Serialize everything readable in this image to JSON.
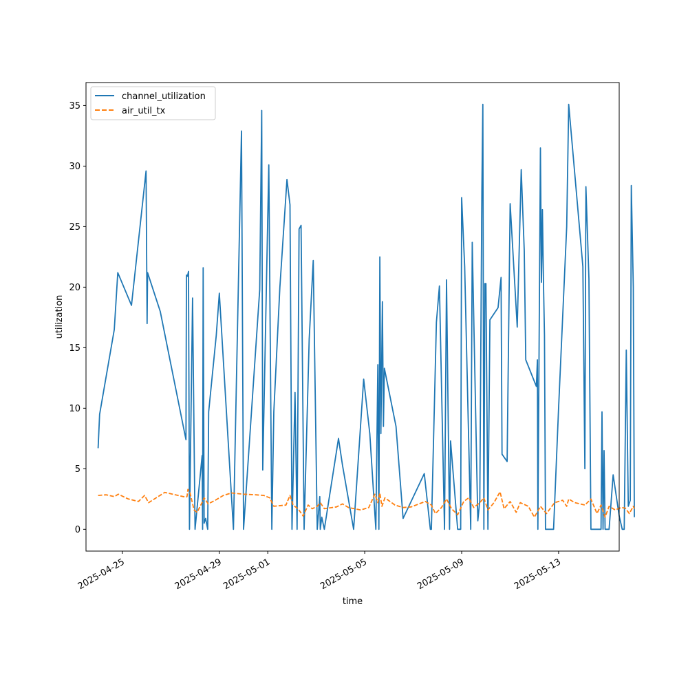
{
  "chart_data": {
    "type": "line",
    "title": "",
    "xlabel": "time",
    "ylabel": "utilization",
    "xlim": [
      "2025-04-23T12:00",
      "2025-05-15T12:00"
    ],
    "ylim": [
      -1.8,
      36.9
    ],
    "y_ticks": [
      0,
      5,
      10,
      15,
      20,
      25,
      30,
      35
    ],
    "x_ticks": [
      "2025-04-25",
      "2025-04-29",
      "2025-05-01",
      "2025-05-05",
      "2025-05-09",
      "2025-05-13"
    ],
    "grid": false,
    "legend_position": "top-left",
    "colors": {
      "channel_utilization": "#1f77b4",
      "air_util_tx": "#ff7f0e"
    },
    "series": [
      {
        "name": "channel_utilization",
        "style": "solid",
        "points": [
          [
            "2025-04-24T00:00",
            6.7
          ],
          [
            "2025-04-24T01:30",
            9.5
          ],
          [
            "2025-04-24T16:00",
            16.5
          ],
          [
            "2025-04-24T19:30",
            21.2
          ],
          [
            "2025-04-25T09:00",
            18.5
          ],
          [
            "2025-04-25T23:30",
            29.6
          ],
          [
            "2025-04-26T00:30",
            17.0
          ],
          [
            "2025-04-26T01:00",
            21.2
          ],
          [
            "2025-04-26T13:30",
            18.0
          ],
          [
            "2025-04-27T15:00",
            7.4
          ],
          [
            "2025-04-27T15:30",
            21.0
          ],
          [
            "2025-04-27T16:30",
            20.9
          ],
          [
            "2025-04-27T17:30",
            21.3
          ],
          [
            "2025-04-27T18:30",
            0.0
          ],
          [
            "2025-04-27T21:30",
            19.1
          ],
          [
            "2025-04-28T00:00",
            0.0
          ],
          [
            "2025-04-28T07:00",
            6.1
          ],
          [
            "2025-04-28T07:30",
            0.0
          ],
          [
            "2025-04-28T08:00",
            21.6
          ],
          [
            "2025-04-28T09:00",
            0.5
          ],
          [
            "2025-04-28T10:30",
            0.9
          ],
          [
            "2025-04-28T12:30",
            0.0
          ],
          [
            "2025-04-28T13:30",
            9.7
          ],
          [
            "2025-04-28T21:00",
            16.0
          ],
          [
            "2025-04-29T00:00",
            19.5
          ],
          [
            "2025-04-29T14:00",
            0.0
          ],
          [
            "2025-04-29T22:00",
            32.9
          ],
          [
            "2025-04-30T00:00",
            0.0
          ],
          [
            "2025-04-30T16:00",
            19.8
          ],
          [
            "2025-04-30T18:00",
            34.6
          ],
          [
            "2025-04-30T19:00",
            4.9
          ],
          [
            "2025-05-01T01:00",
            30.1
          ],
          [
            "2025-05-01T04:00",
            0.0
          ],
          [
            "2025-05-01T06:00",
            9.7
          ],
          [
            "2025-05-01T12:00",
            20.0
          ],
          [
            "2025-05-01T19:00",
            28.9
          ],
          [
            "2025-05-01T22:00",
            26.8
          ],
          [
            "2025-05-02T00:00",
            0.0
          ],
          [
            "2025-05-02T03:00",
            11.3
          ],
          [
            "2025-05-02T05:00",
            0.0
          ],
          [
            "2025-05-02T07:00",
            24.8
          ],
          [
            "2025-05-02T09:00",
            25.1
          ],
          [
            "2025-05-02T12:00",
            0.0
          ],
          [
            "2025-05-02T17:00",
            15.7
          ],
          [
            "2025-05-02T21:00",
            22.2
          ],
          [
            "2025-05-03T01:00",
            0.0
          ],
          [
            "2025-05-03T03:30",
            2.7
          ],
          [
            "2025-05-03T04:00",
            0.0
          ],
          [
            "2025-05-03T05:30",
            1.0
          ],
          [
            "2025-05-03T08:00",
            0.0
          ],
          [
            "2025-05-03T22:00",
            7.5
          ],
          [
            "2025-05-04T02:00",
            5.3
          ],
          [
            "2025-05-04T13:00",
            0.0
          ],
          [
            "2025-05-04T23:00",
            12.4
          ],
          [
            "2025-05-05T05:00",
            7.9
          ],
          [
            "2025-05-05T11:00",
            0.0
          ],
          [
            "2025-05-05T13:00",
            13.6
          ],
          [
            "2025-05-05T14:00",
            0.0
          ],
          [
            "2025-05-05T15:00",
            22.5
          ],
          [
            "2025-05-05T16:00",
            7.9
          ],
          [
            "2025-05-05T17:30",
            18.8
          ],
          [
            "2025-05-05T18:30",
            8.5
          ],
          [
            "2025-05-05T19:30",
            13.3
          ],
          [
            "2025-05-06T07:00",
            8.5
          ],
          [
            "2025-05-06T14:00",
            0.9
          ],
          [
            "2025-05-07T11:00",
            4.6
          ],
          [
            "2025-05-07T17:00",
            0.0
          ],
          [
            "2025-05-07T18:00",
            0.0
          ],
          [
            "2025-05-07T23:00",
            17.1
          ],
          [
            "2025-05-08T02:00",
            20.1
          ],
          [
            "2025-05-08T07:00",
            0.0
          ],
          [
            "2025-05-08T09:00",
            20.6
          ],
          [
            "2025-05-08T12:00",
            0.0
          ],
          [
            "2025-05-08T13:00",
            7.3
          ],
          [
            "2025-05-08T20:00",
            0.0
          ],
          [
            "2025-05-08T23:00",
            0.0
          ],
          [
            "2025-05-09T00:00",
            27.4
          ],
          [
            "2025-05-09T03:00",
            21.7
          ],
          [
            "2025-05-09T09:00",
            0.0
          ],
          [
            "2025-05-09T10:30",
            23.7
          ],
          [
            "2025-05-09T16:00",
            0.7
          ],
          [
            "2025-05-09T18:00",
            2.4
          ],
          [
            "2025-05-09T20:00",
            28.0
          ],
          [
            "2025-05-09T21:00",
            35.1
          ],
          [
            "2025-05-09T22:00",
            0.0
          ],
          [
            "2025-05-09T23:00",
            20.3
          ],
          [
            "2025-05-10T00:00",
            20.3
          ],
          [
            "2025-05-10T02:00",
            0.0
          ],
          [
            "2025-05-10T04:00",
            17.3
          ],
          [
            "2025-05-10T12:00",
            18.3
          ],
          [
            "2025-05-10T15:00",
            20.8
          ],
          [
            "2025-05-10T16:00",
            6.2
          ],
          [
            "2025-05-10T21:00",
            5.6
          ],
          [
            "2025-05-11T00:00",
            26.9
          ],
          [
            "2025-05-11T07:00",
            16.7
          ],
          [
            "2025-05-11T11:00",
            29.7
          ],
          [
            "2025-05-11T14:00",
            23.0
          ],
          [
            "2025-05-11T15:30",
            14.0
          ],
          [
            "2025-05-12T02:00",
            11.8
          ],
          [
            "2025-05-12T03:00",
            14.0
          ],
          [
            "2025-05-12T03:30",
            0.0
          ],
          [
            "2025-05-12T06:00",
            31.5
          ],
          [
            "2025-05-12T07:00",
            20.4
          ],
          [
            "2025-05-12T08:00",
            26.4
          ],
          [
            "2025-05-12T09:00",
            20.5
          ],
          [
            "2025-05-12T10:00",
            16.0
          ],
          [
            "2025-05-12T11:00",
            0.0
          ],
          [
            "2025-05-12T19:00",
            0.0
          ],
          [
            "2025-05-13T00:00",
            10.0
          ],
          [
            "2025-05-13T08:00",
            25.0
          ],
          [
            "2025-05-13T10:00",
            35.1
          ],
          [
            "2025-05-14T00:00",
            21.7
          ],
          [
            "2025-05-14T02:00",
            5.0
          ],
          [
            "2025-05-14T03:00",
            28.3
          ],
          [
            "2025-05-14T06:00",
            20.7
          ],
          [
            "2025-05-14T08:00",
            0.0
          ],
          [
            "2025-05-14T18:00",
            0.0
          ],
          [
            "2025-05-14T19:00",
            9.7
          ],
          [
            "2025-05-14T20:00",
            0.0
          ],
          [
            "2025-05-14T21:00",
            6.5
          ],
          [
            "2025-05-14T22:00",
            0.0
          ],
          [
            "2025-05-15T02:00",
            0.0
          ],
          [
            "2025-05-15T06:00",
            4.5
          ],
          [
            "2025-05-15T12:00",
            1.1
          ],
          [
            "2025-05-15T15:00",
            0.0
          ],
          [
            "2025-05-15T17:00",
            0.0
          ],
          [
            "2025-05-15T19:00",
            14.8
          ],
          [
            "2025-05-15T21:00",
            1.9
          ],
          [
            "2025-05-15T23:00",
            2.4
          ],
          [
            "2025-05-16T00:00",
            28.4
          ],
          [
            "2025-05-16T02:00",
            20.0
          ],
          [
            "2025-05-16T03:00",
            1.0
          ]
        ]
      },
      {
        "name": "air_util_tx",
        "style": "dashed",
        "points": [
          [
            "2025-04-24T00:00",
            2.8
          ],
          [
            "2025-04-24T08:00",
            2.85
          ],
          [
            "2025-04-24T16:00",
            2.7
          ],
          [
            "2025-04-24T20:00",
            2.9
          ],
          [
            "2025-04-25T06:00",
            2.5
          ],
          [
            "2025-04-25T16:00",
            2.3
          ],
          [
            "2025-04-25T22:00",
            2.8
          ],
          [
            "2025-04-26T02:00",
            2.2
          ],
          [
            "2025-04-26T18:00",
            3.05
          ],
          [
            "2025-04-27T15:00",
            2.65
          ],
          [
            "2025-04-27T16:00",
            2.7
          ],
          [
            "2025-04-27T17:00",
            3.3
          ],
          [
            "2025-04-27T19:00",
            3.0
          ],
          [
            "2025-04-27T23:00",
            1.6
          ],
          [
            "2025-04-28T02:00",
            1.4
          ],
          [
            "2025-04-28T05:00",
            1.9
          ],
          [
            "2025-04-28T07:30",
            2.3
          ],
          [
            "2025-04-28T09:00",
            2.6
          ],
          [
            "2025-04-28T13:00",
            2.1
          ],
          [
            "2025-04-28T20:00",
            2.4
          ],
          [
            "2025-04-29T04:00",
            2.8
          ],
          [
            "2025-04-29T12:00",
            3.0
          ],
          [
            "2025-04-30T00:00",
            2.9
          ],
          [
            "2025-04-30T12:00",
            2.85
          ],
          [
            "2025-04-30T20:00",
            2.8
          ],
          [
            "2025-05-01T02:00",
            2.6
          ],
          [
            "2025-05-01T06:00",
            1.9
          ],
          [
            "2025-05-01T18:00",
            2.0
          ],
          [
            "2025-05-01T22:00",
            2.8
          ],
          [
            "2025-05-02T01:00",
            2.0
          ],
          [
            "2025-05-02T06:00",
            1.7
          ],
          [
            "2025-05-02T11:00",
            1.1
          ],
          [
            "2025-05-02T16:00",
            2.0
          ],
          [
            "2025-05-02T20:00",
            1.7
          ],
          [
            "2025-05-03T01:00",
            1.9
          ],
          [
            "2025-05-03T04:00",
            2.2
          ],
          [
            "2025-05-03T08:00",
            1.7
          ],
          [
            "2025-05-03T20:00",
            1.85
          ],
          [
            "2025-05-04T02:00",
            2.1
          ],
          [
            "2025-05-04T08:00",
            1.8
          ],
          [
            "2025-05-04T20:00",
            1.6
          ],
          [
            "2025-05-05T04:00",
            1.8
          ],
          [
            "2025-05-05T10:00",
            2.9
          ],
          [
            "2025-05-05T13:00",
            2.2
          ],
          [
            "2025-05-05T15:00",
            3.0
          ],
          [
            "2025-05-05T17:00",
            1.9
          ],
          [
            "2025-05-05T20:00",
            2.6
          ],
          [
            "2025-05-06T06:00",
            2.0
          ],
          [
            "2025-05-06T14:00",
            1.8
          ],
          [
            "2025-05-06T22:00",
            1.85
          ],
          [
            "2025-05-07T12:00",
            2.3
          ],
          [
            "2025-05-07T18:00",
            2.0
          ],
          [
            "2025-05-07T22:00",
            1.3
          ],
          [
            "2025-05-08T04:00",
            1.8
          ],
          [
            "2025-05-08T09:00",
            2.5
          ],
          [
            "2025-05-08T14:00",
            1.7
          ],
          [
            "2025-05-08T20:00",
            1.2
          ],
          [
            "2025-05-09T02:00",
            2.3
          ],
          [
            "2025-05-09T07:00",
            2.6
          ],
          [
            "2025-05-09T12:00",
            1.8
          ],
          [
            "2025-05-09T18:00",
            2.2
          ],
          [
            "2025-05-09T22:00",
            2.6
          ],
          [
            "2025-05-10T02:00",
            1.6
          ],
          [
            "2025-05-10T08:00",
            2.2
          ],
          [
            "2025-05-10T14:00",
            3.1
          ],
          [
            "2025-05-10T18:00",
            1.7
          ],
          [
            "2025-05-11T00:00",
            2.3
          ],
          [
            "2025-05-11T06:00",
            1.4
          ],
          [
            "2025-05-11T10:00",
            2.2
          ],
          [
            "2025-05-11T18:00",
            1.9
          ],
          [
            "2025-05-12T00:00",
            1.0
          ],
          [
            "2025-05-12T06:00",
            1.9
          ],
          [
            "2025-05-12T12:00",
            1.3
          ],
          [
            "2025-05-12T20:00",
            2.2
          ],
          [
            "2025-05-13T04:00",
            2.4
          ],
          [
            "2025-05-13T08:00",
            1.9
          ],
          [
            "2025-05-13T10:00",
            2.5
          ],
          [
            "2025-05-13T16:00",
            2.2
          ],
          [
            "2025-05-14T02:00",
            2.0
          ],
          [
            "2025-05-14T08:00",
            2.5
          ],
          [
            "2025-05-14T14:00",
            1.3
          ],
          [
            "2025-05-14T18:00",
            2.0
          ],
          [
            "2025-05-14T22:00",
            1.0
          ],
          [
            "2025-05-15T02:00",
            1.9
          ],
          [
            "2025-05-15T08:00",
            1.6
          ],
          [
            "2025-05-15T14:00",
            1.8
          ],
          [
            "2025-05-15T18:00",
            1.75
          ],
          [
            "2025-05-15T22:00",
            1.3
          ],
          [
            "2025-05-16T02:00",
            1.9
          ],
          [
            "2025-05-16T03:00",
            1.7
          ]
        ]
      }
    ]
  }
}
